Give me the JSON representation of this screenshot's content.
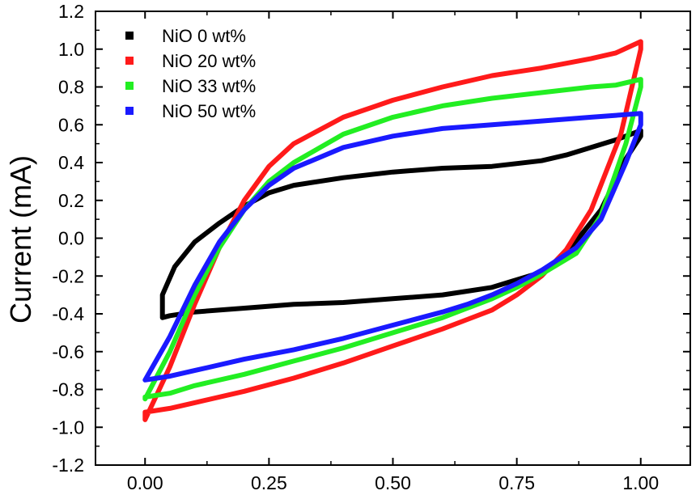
{
  "chart_data": {
    "type": "line",
    "title": "",
    "xlabel": "",
    "ylabel": "Current (mA)",
    "xlim": [
      -0.1,
      1.1
    ],
    "ylim": [
      -1.2,
      1.2
    ],
    "xticks": [
      "0.00",
      "0.25",
      "0.50",
      "0.75",
      "1.00"
    ],
    "xtick_values": [
      0.0,
      0.25,
      0.5,
      0.75,
      1.0
    ],
    "yticks": [
      "-1.2",
      "-1.0",
      "-0.8",
      "-0.6",
      "-0.4",
      "-0.2",
      "0.0",
      "0.2",
      "0.4",
      "0.6",
      "0.8",
      "1.0",
      "1.2"
    ],
    "ytick_values": [
      -1.2,
      -1.0,
      -0.8,
      -0.6,
      -0.4,
      -0.2,
      0.0,
      0.2,
      0.4,
      0.6,
      0.8,
      1.0,
      1.2
    ],
    "grid": false,
    "legend_position": "top-left",
    "series": [
      {
        "name": "NiO 0 wt%",
        "color": "#000000",
        "x": [
          0.035,
          0.06,
          0.1,
          0.15,
          0.2,
          0.25,
          0.3,
          0.4,
          0.5,
          0.6,
          0.7,
          0.8,
          0.85,
          0.9,
          0.95,
          1.0,
          1.0,
          0.97,
          0.92,
          0.85,
          0.8,
          0.75,
          0.7,
          0.65,
          0.6,
          0.5,
          0.4,
          0.3,
          0.2,
          0.1,
          0.05,
          0.035,
          0.035
        ],
        "y": [
          -0.3,
          -0.15,
          -0.02,
          0.08,
          0.17,
          0.24,
          0.28,
          0.32,
          0.35,
          0.37,
          0.38,
          0.41,
          0.44,
          0.48,
          0.52,
          0.57,
          0.54,
          0.42,
          0.15,
          -0.08,
          -0.18,
          -0.22,
          -0.26,
          -0.28,
          -0.3,
          -0.32,
          -0.34,
          -0.35,
          -0.37,
          -0.39,
          -0.41,
          -0.42,
          -0.3
        ]
      },
      {
        "name": "NiO 20 wt%",
        "color": "#ff1a1a",
        "x": [
          0.0,
          0.05,
          0.1,
          0.15,
          0.2,
          0.25,
          0.3,
          0.4,
          0.5,
          0.6,
          0.7,
          0.8,
          0.9,
          0.95,
          1.0,
          1.0,
          0.96,
          0.9,
          0.85,
          0.8,
          0.75,
          0.7,
          0.65,
          0.6,
          0.5,
          0.4,
          0.3,
          0.2,
          0.1,
          0.05,
          0.0,
          0.0
        ],
        "y": [
          -0.96,
          -0.68,
          -0.35,
          -0.05,
          0.2,
          0.38,
          0.5,
          0.64,
          0.73,
          0.8,
          0.86,
          0.9,
          0.95,
          0.98,
          1.04,
          1.0,
          0.55,
          0.15,
          -0.06,
          -0.2,
          -0.3,
          -0.38,
          -0.43,
          -0.48,
          -0.57,
          -0.66,
          -0.74,
          -0.81,
          -0.87,
          -0.9,
          -0.92,
          -0.96
        ]
      },
      {
        "name": "NiO 33 wt%",
        "color": "#22ee22",
        "x": [
          0.0,
          0.05,
          0.1,
          0.15,
          0.2,
          0.25,
          0.3,
          0.4,
          0.5,
          0.6,
          0.7,
          0.8,
          0.9,
          0.95,
          1.0,
          1.0,
          0.97,
          0.92,
          0.87,
          0.8,
          0.75,
          0.7,
          0.65,
          0.6,
          0.5,
          0.4,
          0.3,
          0.2,
          0.1,
          0.05,
          0.0,
          0.0
        ],
        "y": [
          -0.85,
          -0.6,
          -0.3,
          -0.05,
          0.15,
          0.3,
          0.4,
          0.55,
          0.64,
          0.7,
          0.74,
          0.77,
          0.8,
          0.81,
          0.84,
          0.8,
          0.5,
          0.12,
          -0.08,
          -0.19,
          -0.26,
          -0.32,
          -0.37,
          -0.42,
          -0.5,
          -0.58,
          -0.65,
          -0.72,
          -0.78,
          -0.82,
          -0.84,
          -0.85
        ]
      },
      {
        "name": "NiO 50 wt%",
        "color": "#1a1aff",
        "x": [
          0.0,
          0.05,
          0.1,
          0.15,
          0.2,
          0.25,
          0.3,
          0.4,
          0.5,
          0.6,
          0.7,
          0.8,
          0.9,
          0.95,
          1.0,
          1.0,
          0.97,
          0.92,
          0.87,
          0.8,
          0.75,
          0.7,
          0.65,
          0.6,
          0.5,
          0.4,
          0.3,
          0.2,
          0.1,
          0.05,
          0.0,
          0.0
        ],
        "y": [
          -0.75,
          -0.52,
          -0.25,
          -0.02,
          0.15,
          0.28,
          0.37,
          0.48,
          0.54,
          0.58,
          0.6,
          0.62,
          0.64,
          0.65,
          0.66,
          0.6,
          0.4,
          0.1,
          -0.05,
          -0.17,
          -0.24,
          -0.3,
          -0.35,
          -0.39,
          -0.46,
          -0.53,
          -0.59,
          -0.64,
          -0.7,
          -0.73,
          -0.75,
          -0.75
        ]
      }
    ]
  }
}
